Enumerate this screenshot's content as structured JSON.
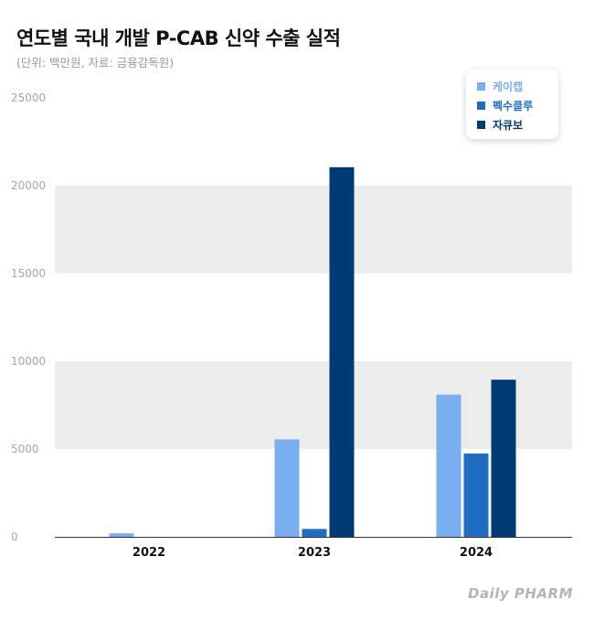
{
  "title": "연도별 국내 개발 P-CAB 신약 수출 실적",
  "subtitle": "(단위: 백만원, 자료: 금융감독원)",
  "logo_text": "Daily PHARM",
  "colors": {
    "series1": "#78aef0",
    "series2": "#1f6cc0",
    "series3": "#003a75",
    "band": "#ececec"
  },
  "chart_data": {
    "type": "bar",
    "categories": [
      "2022",
      "2023",
      "2024"
    ],
    "series": [
      {
        "name": "케이캡",
        "values": [
          200,
          5550,
          8100
        ]
      },
      {
        "name": "펙수클루",
        "values": [
          0,
          450,
          4750
        ]
      },
      {
        "name": "자큐보",
        "values": [
          0,
          21050,
          8950
        ]
      }
    ],
    "yticks": [
      "0",
      "5000",
      "10000",
      "15000",
      "20000",
      "25000"
    ],
    "ylim": [
      0,
      25000
    ],
    "legend": "top-right",
    "grid": "alternating bands"
  }
}
